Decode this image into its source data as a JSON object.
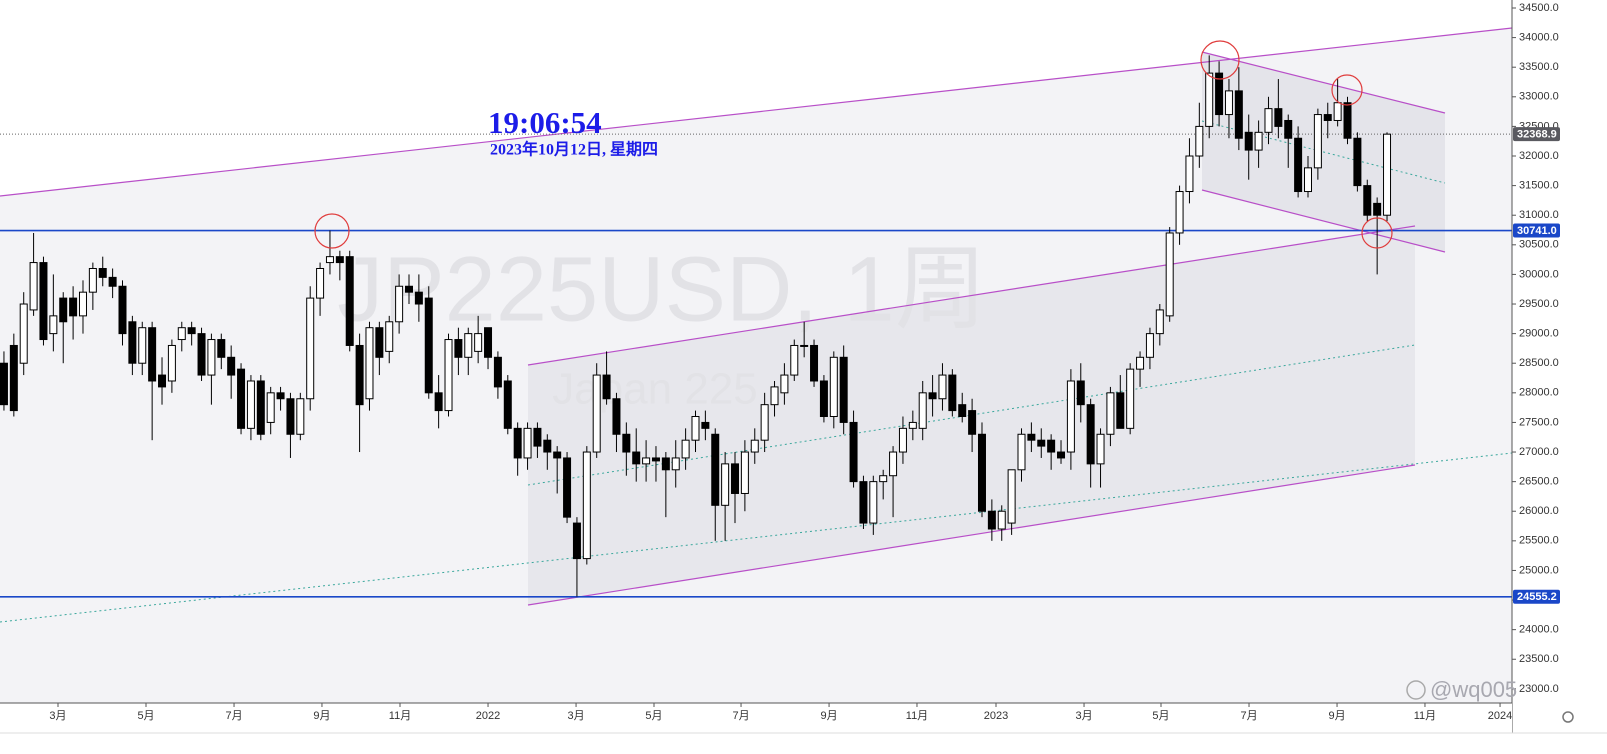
{
  "chart_data": {
    "type": "candlestick",
    "title": "JP225USD, 1周",
    "subtitle": "Japan 225",
    "clock": "19:06:54",
    "date": "2023年10月12日, 星期四",
    "user": "@wq005",
    "up_color": "#ffffff",
    "down_color": "#000000",
    "candles": [
      [
        28500,
        28700,
        27700,
        27800
      ],
      [
        28800,
        29000,
        27600,
        27700
      ],
      [
        28500,
        29700,
        28300,
        29500
      ],
      [
        29400,
        30700,
        29300,
        30200
      ],
      [
        30200,
        30300,
        28800,
        28900
      ],
      [
        29000,
        30000,
        28700,
        29300
      ],
      [
        29600,
        29700,
        28500,
        29200
      ],
      [
        29600,
        29800,
        28900,
        29300
      ],
      [
        29300,
        29900,
        29000,
        29700
      ],
      [
        29700,
        30200,
        29400,
        30100
      ],
      [
        30100,
        30300,
        29800,
        29950
      ],
      [
        29950,
        30100,
        29600,
        29800
      ],
      [
        29800,
        29900,
        28800,
        29000
      ],
      [
        29200,
        29300,
        28300,
        28500
      ],
      [
        28500,
        29200,
        28300,
        29100
      ],
      [
        29100,
        29200,
        27200,
        28200
      ],
      [
        28300,
        28600,
        27800,
        28100
      ],
      [
        28200,
        28900,
        28000,
        28800
      ],
      [
        28900,
        29200,
        28700,
        29100
      ],
      [
        29100,
        29200,
        28800,
        29000
      ],
      [
        29000,
        29100,
        28200,
        28300
      ],
      [
        28300,
        29000,
        27800,
        28900
      ],
      [
        28900,
        29000,
        28400,
        28600
      ],
      [
        28600,
        28800,
        27900,
        28300
      ],
      [
        28400,
        28500,
        27300,
        27400
      ],
      [
        27400,
        28300,
        27200,
        28200
      ],
      [
        28200,
        28300,
        27200,
        27300
      ],
      [
        27500,
        28100,
        27300,
        28000
      ],
      [
        28000,
        28100,
        27700,
        27900
      ],
      [
        27900,
        28000,
        26900,
        27300
      ],
      [
        27300,
        28000,
        27200,
        27900
      ],
      [
        27900,
        29800,
        27700,
        29600
      ],
      [
        29600,
        30200,
        29300,
        30100
      ],
      [
        30200,
        30741,
        30000,
        30300
      ],
      [
        30300,
        30400,
        29900,
        30200
      ],
      [
        30300,
        30400,
        28700,
        28800
      ],
      [
        28800,
        29000,
        27000,
        27800
      ],
      [
        27900,
        29200,
        27700,
        29100
      ],
      [
        29100,
        29200,
        28300,
        28600
      ],
      [
        28700,
        29300,
        28500,
        29200
      ],
      [
        29200,
        30000,
        29000,
        29800
      ],
      [
        29800,
        30000,
        29500,
        29700
      ],
      [
        29700,
        30000,
        29200,
        29500
      ],
      [
        29600,
        29800,
        27900,
        28000
      ],
      [
        28000,
        28300,
        27400,
        27700
      ],
      [
        27700,
        29000,
        27600,
        28900
      ],
      [
        28900,
        29100,
        28300,
        28600
      ],
      [
        28600,
        29100,
        28300,
        29000
      ],
      [
        28700,
        29300,
        28500,
        29000
      ],
      [
        29100,
        29100,
        28400,
        28600
      ],
      [
        28600,
        28700,
        27900,
        28100
      ],
      [
        28200,
        28300,
        27300,
        27400
      ],
      [
        27400,
        27500,
        26600,
        26900
      ],
      [
        26900,
        27500,
        26700,
        27400
      ],
      [
        27400,
        27500,
        26900,
        27100
      ],
      [
        27200,
        27300,
        26700,
        27000
      ],
      [
        27000,
        27100,
        26300,
        26900
      ],
      [
        26900,
        27000,
        25800,
        25900
      ],
      [
        25800,
        25900,
        24560,
        25200
      ],
      [
        25200,
        27100,
        25100,
        27000
      ],
      [
        27000,
        28500,
        26900,
        28300
      ],
      [
        28300,
        28700,
        27800,
        27900
      ],
      [
        27900,
        28000,
        27000,
        27300
      ],
      [
        27300,
        27500,
        26600,
        27000
      ],
      [
        27000,
        27400,
        26500,
        26800
      ],
      [
        26800,
        27200,
        26500,
        26900
      ],
      [
        26900,
        27100,
        26500,
        26850
      ],
      [
        26900,
        27000,
        25900,
        26700
      ],
      [
        26700,
        27200,
        26400,
        26900
      ],
      [
        26900,
        27400,
        26700,
        27200
      ],
      [
        27200,
        27700,
        27000,
        27600
      ],
      [
        27500,
        27700,
        27200,
        27400
      ],
      [
        27300,
        27400,
        25500,
        26100
      ],
      [
        26100,
        27000,
        25500,
        26800
      ],
      [
        26800,
        27000,
        25800,
        26300
      ],
      [
        26300,
        27200,
        26000,
        27000
      ],
      [
        27000,
        27400,
        26800,
        27200
      ],
      [
        27200,
        28000,
        27000,
        27800
      ],
      [
        27800,
        28200,
        27600,
        28100
      ],
      [
        28000,
        28500,
        27800,
        28300
      ],
      [
        28300,
        28900,
        28200,
        28800
      ],
      [
        28800,
        29200,
        28600,
        28800
      ],
      [
        28800,
        28900,
        28100,
        28200
      ],
      [
        28200,
        28300,
        27500,
        27600
      ],
      [
        27600,
        28700,
        27400,
        28600
      ],
      [
        28600,
        28800,
        27300,
        27500
      ],
      [
        27500,
        27700,
        26400,
        26500
      ],
      [
        26500,
        26600,
        25700,
        25800
      ],
      [
        25800,
        26600,
        25600,
        26500
      ],
      [
        26500,
        26700,
        26200,
        26600
      ],
      [
        26600,
        27100,
        25900,
        27000
      ],
      [
        27000,
        27600,
        26800,
        27400
      ],
      [
        27400,
        27700,
        27200,
        27500
      ],
      [
        27400,
        28200,
        27200,
        28000
      ],
      [
        28000,
        28300,
        27600,
        27900
      ],
      [
        27900,
        28500,
        27700,
        28300
      ],
      [
        28300,
        28400,
        27600,
        27700
      ],
      [
        27800,
        28000,
        27500,
        27600
      ],
      [
        27700,
        27900,
        27000,
        27300
      ],
      [
        27300,
        27500,
        25900,
        26000
      ],
      [
        26000,
        26200,
        25500,
        25700
      ],
      [
        25700,
        26100,
        25500,
        26000
      ],
      [
        25800,
        26700,
        25600,
        26700
      ],
      [
        26700,
        27400,
        26500,
        27300
      ],
      [
        27300,
        27500,
        27000,
        27200
      ],
      [
        27200,
        27400,
        26900,
        27100
      ],
      [
        27200,
        27300,
        26700,
        27000
      ],
      [
        27000,
        27200,
        26800,
        26900
      ],
      [
        27000,
        28400,
        26700,
        28200
      ],
      [
        28200,
        28500,
        27500,
        27800
      ],
      [
        27800,
        27900,
        26400,
        26800
      ],
      [
        26800,
        27400,
        26400,
        27300
      ],
      [
        27300,
        28100,
        27100,
        28000
      ],
      [
        28000,
        28300,
        27400,
        27400
      ],
      [
        27400,
        28500,
        27300,
        28400
      ],
      [
        28400,
        28700,
        28100,
        28600
      ],
      [
        28600,
        29100,
        28400,
        29000
      ],
      [
        29000,
        29500,
        28800,
        29400
      ],
      [
        29300,
        30800,
        29200,
        30700
      ],
      [
        30700,
        31500,
        30500,
        31400
      ],
      [
        31400,
        32300,
        31200,
        32000
      ],
      [
        32000,
        32900,
        31800,
        32500
      ],
      [
        32500,
        33700,
        32300,
        33400
      ],
      [
        33400,
        33600,
        32500,
        32700
      ],
      [
        32700,
        33300,
        32300,
        33100
      ],
      [
        33100,
        33500,
        32100,
        32300
      ],
      [
        32400,
        32700,
        31600,
        32100
      ],
      [
        32100,
        32600,
        31800,
        32400
      ],
      [
        32400,
        33000,
        32200,
        32800
      ],
      [
        32800,
        33300,
        32300,
        32500
      ],
      [
        32600,
        32700,
        31800,
        32300
      ],
      [
        32300,
        32500,
        31300,
        31400
      ],
      [
        31400,
        32000,
        31300,
        31800
      ],
      [
        31800,
        32800,
        31600,
        32700
      ],
      [
        32700,
        32900,
        32300,
        32600
      ],
      [
        32600,
        33300,
        32500,
        32900
      ],
      [
        32900,
        33000,
        32200,
        32300
      ],
      [
        32300,
        32400,
        31400,
        31500
      ],
      [
        31500,
        31600,
        30900,
        31000
      ],
      [
        31200,
        31300,
        30000,
        31000
      ],
      [
        31000,
        32400,
        30900,
        32368.9
      ]
    ],
    "xlim": [
      -0.4,
      152.65
    ],
    "xticks": [
      {
        "value": 5.47,
        "label": "3月"
      },
      {
        "value": 14.38,
        "label": "5月"
      },
      {
        "value": 23.29,
        "label": "7月"
      },
      {
        "value": 32.19,
        "label": "9月"
      },
      {
        "value": 40.09,
        "label": "11月"
      },
      {
        "value": 49.0,
        "label": "2022"
      },
      {
        "value": 57.91,
        "label": "3月"
      },
      {
        "value": 65.8,
        "label": "5月"
      },
      {
        "value": 74.61,
        "label": "7月"
      },
      {
        "value": 83.52,
        "label": "9月"
      },
      {
        "value": 92.42,
        "label": "11月"
      },
      {
        "value": 100.42,
        "label": "2023"
      },
      {
        "value": 109.33,
        "label": "3月"
      },
      {
        "value": 117.12,
        "label": "5月"
      },
      {
        "value": 126.03,
        "label": "7月"
      },
      {
        "value": 134.94,
        "label": "9月"
      },
      {
        "value": 143.84,
        "label": "11月"
      },
      {
        "value": 151.44,
        "label": "2024"
      }
    ],
    "ylim": [
      22761,
      34635
    ],
    "yticks": [
      {
        "value": 23000,
        "label": "23000.0"
      },
      {
        "value": 23500,
        "label": "23500.0"
      },
      {
        "value": 24000,
        "label": "24000.0"
      },
      {
        "value": 24500,
        "label": "24500.0"
      },
      {
        "value": 25000,
        "label": "25000.0"
      },
      {
        "value": 25500,
        "label": "25500.0"
      },
      {
        "value": 26000,
        "label": "26000.0"
      },
      {
        "value": 26500,
        "label": "26500.0"
      },
      {
        "value": 27000,
        "label": "27000.0"
      },
      {
        "value": 27500,
        "label": "27500.0"
      },
      {
        "value": 28000,
        "label": "28000.0"
      },
      {
        "value": 28500,
        "label": "28500.0"
      },
      {
        "value": 29000,
        "label": "29000.0"
      },
      {
        "value": 29500,
        "label": "29500.0"
      },
      {
        "value": 30000,
        "label": "30000.0"
      },
      {
        "value": 30500,
        "label": "30500.0"
      },
      {
        "value": 31000,
        "label": "31000.0"
      },
      {
        "value": 31500,
        "label": "31500.0"
      },
      {
        "value": 32000,
        "label": "32000.0"
      },
      {
        "value": 32500,
        "label": "32500.0"
      },
      {
        "value": 33000,
        "label": "33000.0"
      },
      {
        "value": 33500,
        "label": "33500.0"
      },
      {
        "value": 34000,
        "label": "34000.0"
      },
      {
        "value": 34500,
        "label": "34500.0"
      }
    ],
    "hlines": [
      {
        "value": 30741,
        "label": "30741.0",
        "color": "#1a47c8"
      },
      {
        "value": 24555.2,
        "label": "24555.2",
        "color": "#1a47c8"
      }
    ],
    "last_price": {
      "value": 32368.9,
      "color": "#5a5a60"
    }
  }
}
